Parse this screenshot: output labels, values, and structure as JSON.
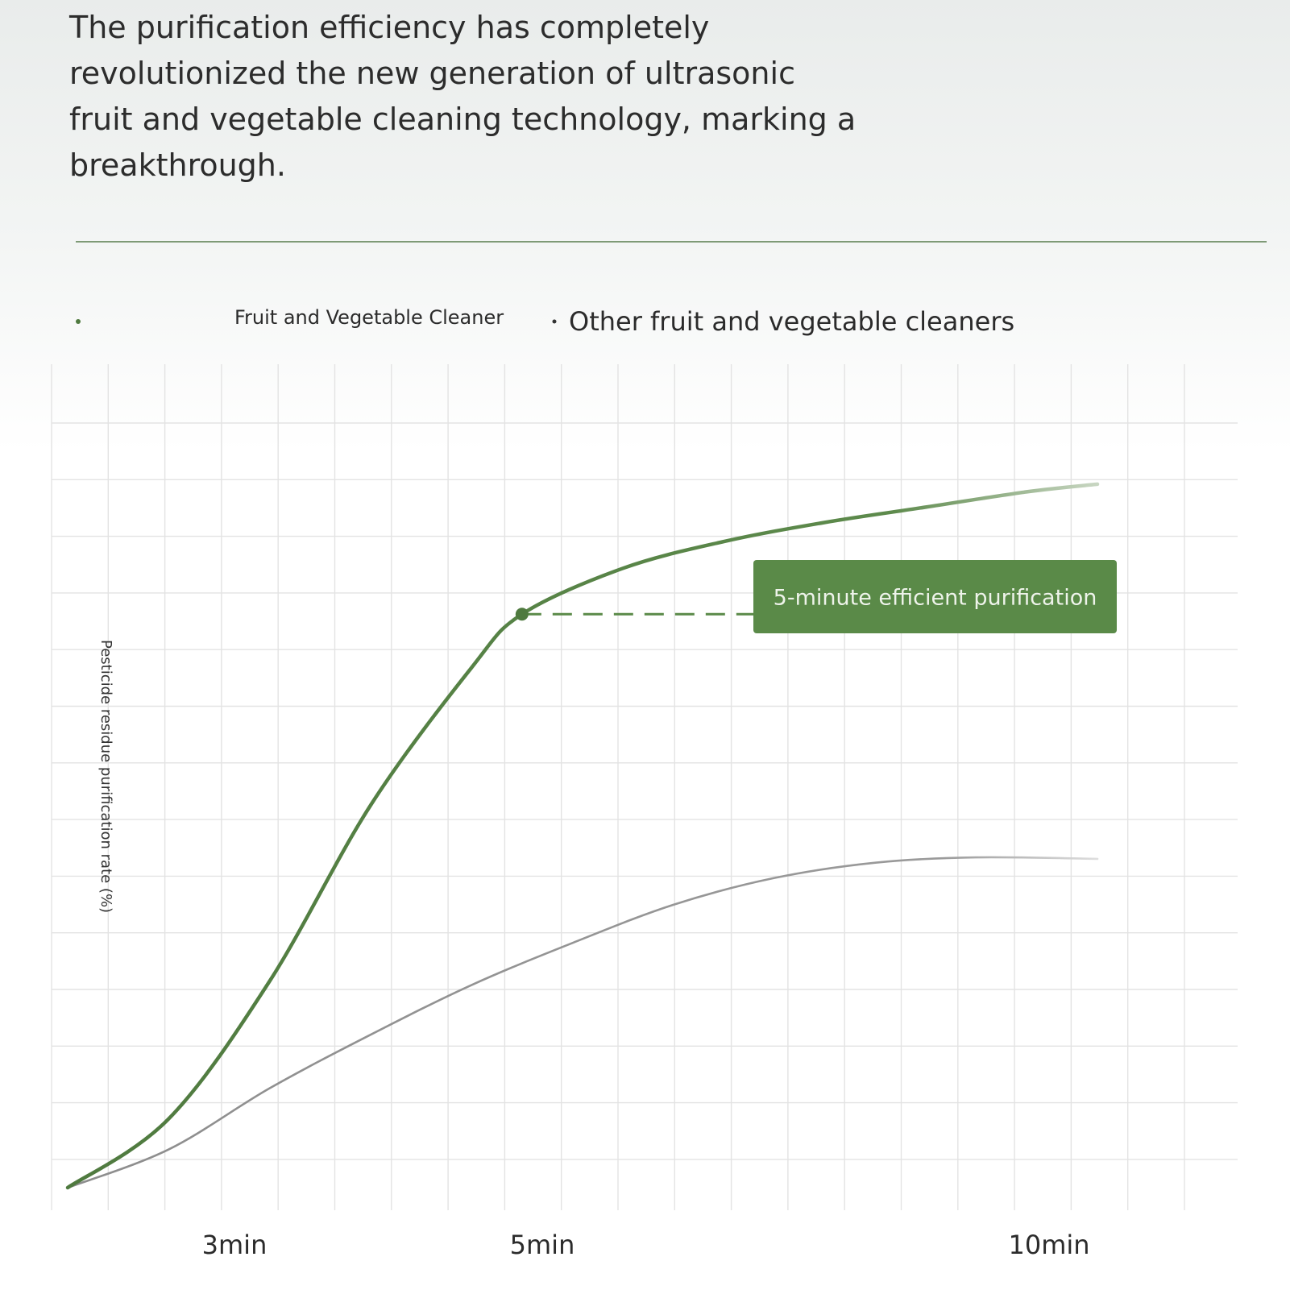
{
  "header": {
    "headline": "The purification efficiency has completely\nrevolutionized the new generation of ultrasonic\nfruit and vegetable cleaning technology, marking a\n breakthrough."
  },
  "colors": {
    "primary_series": "#4f7a3f",
    "secondary_series": "#8d8d8d",
    "callout_bg": "#5a8a48",
    "grid": "#e3e3e3"
  },
  "chart_data": {
    "type": "line",
    "title": "",
    "xlabel": "",
    "ylabel": "Pesticide residue purification rate (%)",
    "grid": true,
    "legend_position": "top",
    "x_ticks": [
      {
        "label": "3min",
        "value": 3
      },
      {
        "label": "5min",
        "value": 5
      },
      {
        "label": "10min",
        "value": 10
      }
    ],
    "xlim": [
      0.5,
      10.7
    ],
    "ylim": [
      0,
      100
    ],
    "series": [
      {
        "name": "Fruit and Vegetable Cleaner",
        "color": "#4f7a3f",
        "x": [
          0.5,
          1.5,
          2.5,
          3.5,
          4.5,
          5.0,
          6.0,
          7.0,
          8.0,
          9.0,
          10.0,
          10.7
        ],
        "y": [
          0,
          9,
          27,
          50,
          68,
          75,
          81,
          84.5,
          87,
          89,
          91,
          92
        ]
      },
      {
        "name": "Other fruit and vegetable cleaners",
        "color": "#8d8d8d",
        "x": [
          0.5,
          1.5,
          2.5,
          3.5,
          4.5,
          5.5,
          6.5,
          7.5,
          8.5,
          9.5,
          10.7
        ],
        "y": [
          0,
          5,
          13,
          20,
          26.5,
          32,
          37,
          40.5,
          42.5,
          43.2,
          43
        ]
      }
    ],
    "annotation": {
      "label": "5-minute efficient purification",
      "x": 5,
      "y": 75
    }
  }
}
